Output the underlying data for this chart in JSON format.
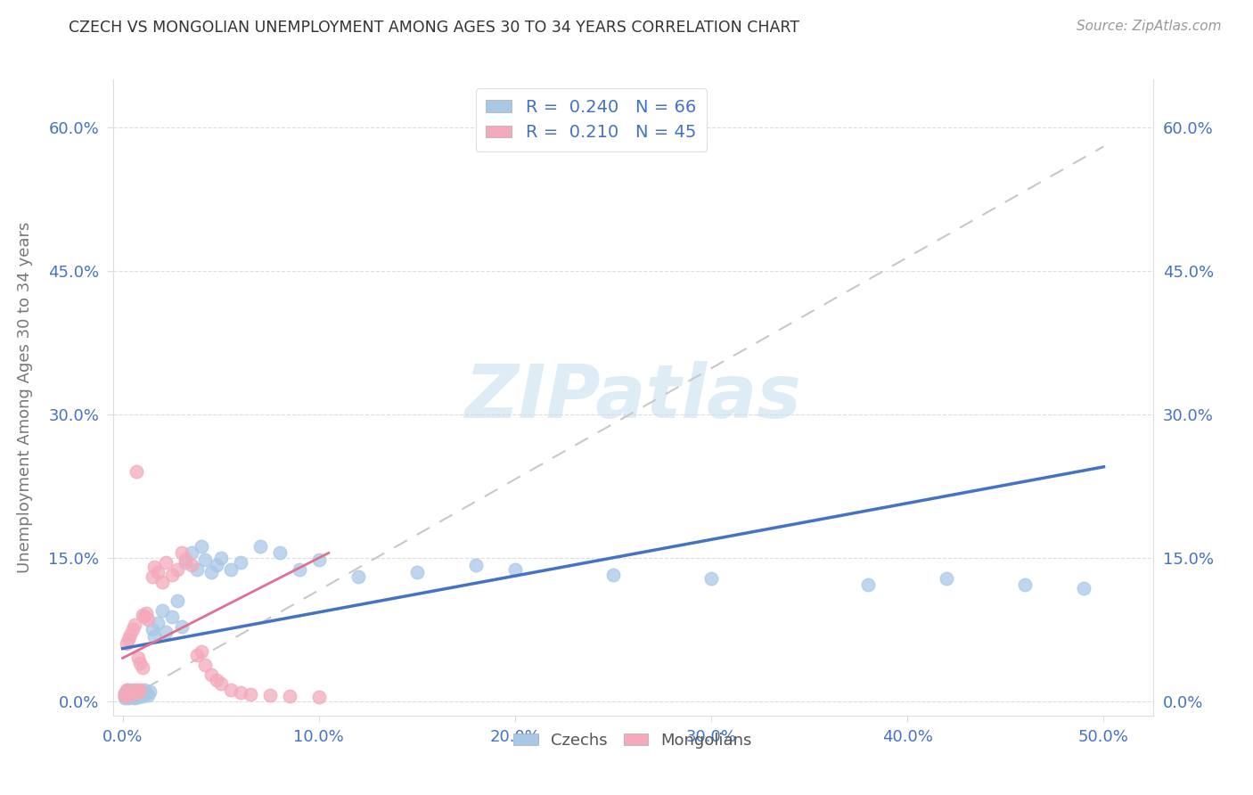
{
  "title": "CZECH VS MONGOLIAN UNEMPLOYMENT AMONG AGES 30 TO 34 YEARS CORRELATION CHART",
  "source": "Source: ZipAtlas.com",
  "xlabel_ticks": [
    "0.0%",
    "10.0%",
    "20.0%",
    "30.0%",
    "40.0%",
    "50.0%"
  ],
  "xlabel_vals": [
    0.0,
    0.1,
    0.2,
    0.3,
    0.4,
    0.5
  ],
  "ylabel_ticks": [
    "0.0%",
    "15.0%",
    "30.0%",
    "45.0%",
    "60.0%"
  ],
  "ylabel_vals": [
    0.0,
    0.15,
    0.3,
    0.45,
    0.6
  ],
  "ylabel_label": "Unemployment Among Ages 30 to 34 years",
  "xlim": [
    -0.005,
    0.525
  ],
  "ylim": [
    -0.015,
    0.65
  ],
  "czech_color": "#a8c8e8",
  "mongolian_color": "#f4aabb",
  "czech_R": 0.24,
  "czech_N": 66,
  "mongolian_R": 0.21,
  "mongolian_N": 45,
  "czech_line_color": "#4472C4",
  "mongolian_line_color": "#E07090",
  "legend_text_color": "#4472C4",
  "tick_color": "#4472C4",
  "ylabel_color": "#888888",
  "watermark_color": "#c8e0f0",
  "watermark": "ZIPatlas",
  "czech_line_x": [
    0.0,
    0.5
  ],
  "czech_line_y": [
    0.055,
    0.245
  ],
  "mongolian_line_x": [
    0.0,
    0.105
  ],
  "mongolian_line_y": [
    0.045,
    0.155
  ],
  "diag_line_x": [
    0.0,
    0.5
  ],
  "diag_line_y": [
    0.0,
    0.58
  ],
  "czech_scatter_x": [
    0.001,
    0.001,
    0.001,
    0.002,
    0.002,
    0.002,
    0.002,
    0.003,
    0.003,
    0.003,
    0.003,
    0.004,
    0.004,
    0.004,
    0.005,
    0.005,
    0.005,
    0.005,
    0.006,
    0.006,
    0.006,
    0.007,
    0.007,
    0.008,
    0.008,
    0.008,
    0.009,
    0.009,
    0.01,
    0.01,
    0.011,
    0.012,
    0.013,
    0.014,
    0.015,
    0.016,
    0.018,
    0.02,
    0.022,
    0.025,
    0.028,
    0.03,
    0.032,
    0.035,
    0.038,
    0.04,
    0.042,
    0.045,
    0.048,
    0.05,
    0.055,
    0.06,
    0.07,
    0.08,
    0.09,
    0.1,
    0.12,
    0.15,
    0.18,
    0.2,
    0.25,
    0.3,
    0.38,
    0.42,
    0.46,
    0.49
  ],
  "czech_scatter_y": [
    0.005,
    0.008,
    0.003,
    0.01,
    0.006,
    0.004,
    0.007,
    0.012,
    0.005,
    0.008,
    0.003,
    0.009,
    0.006,
    0.011,
    0.005,
    0.008,
    0.012,
    0.004,
    0.007,
    0.01,
    0.003,
    0.009,
    0.006,
    0.011,
    0.004,
    0.008,
    0.007,
    0.01,
    0.005,
    0.009,
    0.012,
    0.008,
    0.006,
    0.01,
    0.075,
    0.068,
    0.082,
    0.095,
    0.072,
    0.088,
    0.105,
    0.078,
    0.145,
    0.155,
    0.138,
    0.162,
    0.148,
    0.135,
    0.142,
    0.15,
    0.138,
    0.145,
    0.162,
    0.155,
    0.138,
    0.148,
    0.13,
    0.135,
    0.142,
    0.138,
    0.132,
    0.128,
    0.122,
    0.128,
    0.122,
    0.118
  ],
  "mongolian_scatter_x": [
    0.001,
    0.001,
    0.002,
    0.002,
    0.003,
    0.003,
    0.004,
    0.004,
    0.005,
    0.005,
    0.006,
    0.006,
    0.007,
    0.007,
    0.008,
    0.008,
    0.009,
    0.009,
    0.01,
    0.01,
    0.011,
    0.012,
    0.013,
    0.015,
    0.016,
    0.018,
    0.02,
    0.022,
    0.025,
    0.028,
    0.03,
    0.032,
    0.035,
    0.038,
    0.04,
    0.042,
    0.045,
    0.048,
    0.05,
    0.055,
    0.06,
    0.065,
    0.075,
    0.085,
    0.1
  ],
  "mongolian_scatter_y": [
    0.005,
    0.008,
    0.06,
    0.012,
    0.01,
    0.065,
    0.007,
    0.07,
    0.008,
    0.075,
    0.01,
    0.08,
    0.012,
    0.24,
    0.009,
    0.045,
    0.012,
    0.04,
    0.035,
    0.09,
    0.088,
    0.092,
    0.085,
    0.13,
    0.14,
    0.135,
    0.125,
    0.145,
    0.132,
    0.138,
    0.155,
    0.148,
    0.142,
    0.048,
    0.052,
    0.038,
    0.028,
    0.022,
    0.018,
    0.012,
    0.009,
    0.007,
    0.006,
    0.005,
    0.004
  ]
}
